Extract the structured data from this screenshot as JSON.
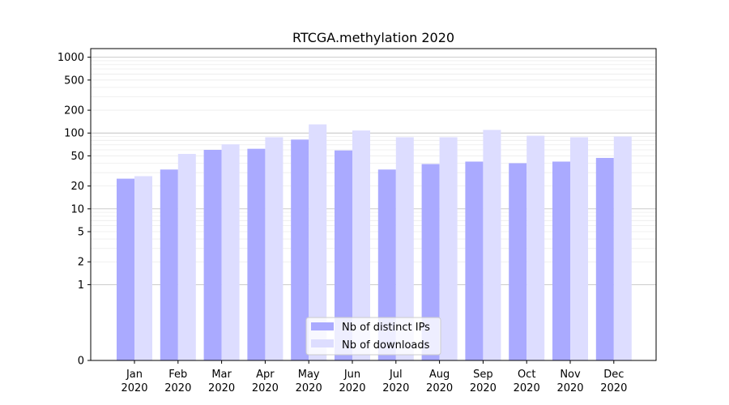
{
  "chart_data": {
    "type": "bar",
    "title": "RTCGA.methylation 2020",
    "xlabel": "",
    "ylabel": "",
    "scale": "symlog",
    "ylim": [
      0,
      1300
    ],
    "yticks": [
      0,
      1,
      2,
      5,
      10,
      20,
      50,
      100,
      200,
      500,
      1000
    ],
    "grid": true,
    "legend_position": "bottom-center",
    "categories": [
      "Jan\n2020",
      "Feb\n2020",
      "Mar\n2020",
      "Apr\n2020",
      "May\n2020",
      "Jun\n2020",
      "Jul\n2020",
      "Aug\n2020",
      "Sep\n2020",
      "Oct\n2020",
      "Nov\n2020",
      "Dec\n2020"
    ],
    "series": [
      {
        "name": "Nb of distinct IPs",
        "color": "#aaaaff",
        "values": [
          25,
          33,
          60,
          62,
          82,
          59,
          33,
          39,
          42,
          40,
          42,
          47
        ]
      },
      {
        "name": "Nb of downloads",
        "color": "#ddddff",
        "values": [
          27,
          53,
          71,
          88,
          130,
          108,
          88,
          88,
          110,
          92,
          88,
          90
        ]
      }
    ]
  }
}
